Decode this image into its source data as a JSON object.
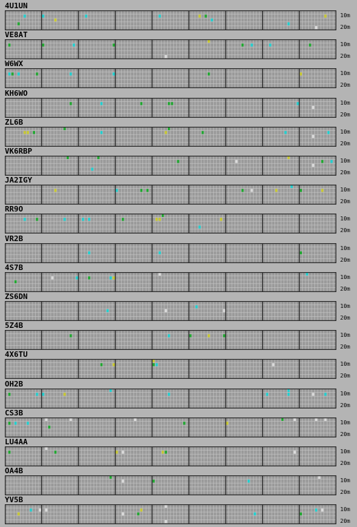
{
  "band_labels": {
    "top": "10m",
    "bottom": "20m"
  },
  "colors": {
    "background": "#b4b4b4",
    "grid_cell": "#9a9a9a",
    "grid_line": "#c6c6c6",
    "grid_major": "#2a2a2a",
    "spot_cyan": "#22d0d0",
    "spot_green": "#22a832",
    "spot_yellow": "#c8c832",
    "spot_white": "#dcdcdc"
  },
  "stations": [
    {
      "name": "4U1UN",
      "spots": [
        [
          4,
          3,
          "green"
        ],
        [
          6,
          1,
          "cyan"
        ],
        [
          12,
          1,
          "cyan"
        ],
        [
          16,
          2,
          "yellow"
        ],
        [
          26,
          1,
          "cyan"
        ],
        [
          50,
          1,
          "cyan"
        ],
        [
          63,
          1,
          "yellow"
        ],
        [
          65,
          1,
          "green"
        ],
        [
          67,
          2,
          "cyan"
        ],
        [
          92,
          3,
          "cyan"
        ],
        [
          101,
          4,
          "white"
        ],
        [
          104,
          1,
          "yellow"
        ]
      ]
    },
    {
      "name": "VE8AT",
      "spots": [
        [
          1,
          1,
          "green"
        ],
        [
          12,
          1,
          "green"
        ],
        [
          22,
          1,
          "cyan"
        ],
        [
          35,
          1,
          "green"
        ],
        [
          52,
          4,
          "white"
        ],
        [
          66,
          0,
          "yellow"
        ],
        [
          77,
          1,
          "green"
        ],
        [
          80,
          1,
          "cyan"
        ],
        [
          86,
          1,
          "cyan"
        ],
        [
          99,
          1,
          "green"
        ]
      ]
    },
    {
      "name": "W6WX",
      "spots": [
        [
          1,
          1,
          "cyan"
        ],
        [
          2,
          1,
          "green"
        ],
        [
          4,
          1,
          "cyan"
        ],
        [
          10,
          1,
          "green"
        ],
        [
          21,
          1,
          "cyan"
        ],
        [
          35,
          1,
          "cyan"
        ],
        [
          66,
          1,
          "green"
        ],
        [
          96,
          1,
          "yellow"
        ]
      ]
    },
    {
      "name": "KH6WO",
      "spots": [
        [
          21,
          1,
          "green"
        ],
        [
          31,
          1,
          "cyan"
        ],
        [
          44,
          1,
          "green"
        ],
        [
          53,
          1,
          "green"
        ],
        [
          54,
          1,
          "green"
        ],
        [
          95,
          1,
          "cyan"
        ],
        [
          100,
          2,
          "white"
        ]
      ]
    },
    {
      "name": "ZL6B",
      "spots": [
        [
          6,
          1,
          "yellow"
        ],
        [
          7,
          1,
          "yellow"
        ],
        [
          9,
          1,
          "green"
        ],
        [
          19,
          0,
          "green"
        ],
        [
          31,
          1,
          "cyan"
        ],
        [
          52,
          1,
          "yellow"
        ],
        [
          53,
          0,
          "green"
        ],
        [
          64,
          1,
          "green"
        ],
        [
          91,
          1,
          "cyan"
        ],
        [
          100,
          2,
          "white"
        ],
        [
          105,
          1,
          "cyan"
        ]
      ]
    },
    {
      "name": "VK6RBP",
      "spots": [
        [
          20,
          0,
          "green"
        ],
        [
          28,
          3,
          "cyan"
        ],
        [
          30,
          0,
          "green"
        ],
        [
          56,
          1,
          "green"
        ],
        [
          75,
          1,
          "white"
        ],
        [
          92,
          0,
          "yellow"
        ],
        [
          100,
          2,
          "white"
        ],
        [
          103,
          1,
          "green"
        ],
        [
          106,
          1,
          "cyan"
        ]
      ]
    },
    {
      "name": "JA2IGY",
      "spots": [
        [
          16,
          1,
          "yellow"
        ],
        [
          36,
          1,
          "cyan"
        ],
        [
          44,
          1,
          "green"
        ],
        [
          46,
          1,
          "green"
        ],
        [
          77,
          1,
          "green"
        ],
        [
          80,
          1,
          "white"
        ],
        [
          88,
          1,
          "yellow"
        ],
        [
          93,
          0,
          "cyan"
        ],
        [
          96,
          1,
          "green"
        ],
        [
          103,
          1,
          "yellow"
        ]
      ]
    },
    {
      "name": "RR9O",
      "spots": [
        [
          6,
          1,
          "cyan"
        ],
        [
          10,
          1,
          "green"
        ],
        [
          19,
          1,
          "cyan"
        ],
        [
          25,
          1,
          "cyan"
        ],
        [
          27,
          1,
          "cyan"
        ],
        [
          38,
          1,
          "green"
        ],
        [
          49,
          1,
          "yellow"
        ],
        [
          50,
          1,
          "yellow"
        ],
        [
          51,
          0,
          "green"
        ],
        [
          63,
          3,
          "cyan"
        ],
        [
          70,
          1,
          "yellow"
        ]
      ]
    },
    {
      "name": "VR2B",
      "spots": [
        [
          27,
          2,
          "cyan"
        ],
        [
          50,
          2,
          "cyan"
        ],
        [
          96,
          2,
          "green"
        ]
      ]
    },
    {
      "name": "4S7B",
      "spots": [
        [
          3,
          2,
          "green"
        ],
        [
          15,
          1,
          "white"
        ],
        [
          23,
          1,
          "cyan"
        ],
        [
          27,
          1,
          "green"
        ],
        [
          34,
          1,
          "cyan"
        ],
        [
          35,
          1,
          "yellow"
        ],
        [
          50,
          0,
          "white"
        ],
        [
          98,
          0,
          "cyan"
        ]
      ]
    },
    {
      "name": "ZS6DN",
      "spots": [
        [
          33,
          2,
          "cyan"
        ],
        [
          52,
          2,
          "white"
        ],
        [
          62,
          1,
          "cyan"
        ],
        [
          71,
          2,
          "white"
        ]
      ]
    },
    {
      "name": "5Z4B",
      "spots": [
        [
          21,
          1,
          "green"
        ],
        [
          53,
          1,
          "cyan"
        ],
        [
          60,
          1,
          "green"
        ],
        [
          66,
          1,
          "yellow"
        ],
        [
          71,
          1,
          "green"
        ]
      ]
    },
    {
      "name": "4X6TU",
      "spots": [
        [
          31,
          1,
          "green"
        ],
        [
          35,
          1,
          "yellow"
        ],
        [
          48,
          0,
          "yellow"
        ],
        [
          48,
          1,
          "green"
        ],
        [
          49,
          1,
          "cyan"
        ],
        [
          87,
          1,
          "white"
        ]
      ]
    },
    {
      "name": "OH2B",
      "spots": [
        [
          1,
          1,
          "green"
        ],
        [
          10,
          1,
          "cyan"
        ],
        [
          12,
          1,
          "cyan"
        ],
        [
          19,
          1,
          "yellow"
        ],
        [
          34,
          0,
          "cyan"
        ],
        [
          53,
          1,
          "cyan"
        ],
        [
          85,
          1,
          "cyan"
        ],
        [
          92,
          0,
          "cyan"
        ],
        [
          92,
          1,
          "cyan"
        ],
        [
          100,
          1,
          "white"
        ],
        [
          104,
          1,
          "cyan"
        ]
      ]
    },
    {
      "name": "CS3B",
      "spots": [
        [
          1,
          1,
          "green"
        ],
        [
          3,
          1,
          "cyan"
        ],
        [
          7,
          1,
          "cyan"
        ],
        [
          13,
          0,
          "white"
        ],
        [
          14,
          2,
          "green"
        ],
        [
          21,
          0,
          "white"
        ],
        [
          42,
          0,
          "white"
        ],
        [
          58,
          1,
          "green"
        ],
        [
          72,
          1,
          "yellow"
        ],
        [
          90,
          0,
          "green"
        ],
        [
          94,
          0,
          "white"
        ],
        [
          101,
          0,
          "white"
        ],
        [
          104,
          0,
          "white"
        ]
      ]
    },
    {
      "name": "LU4AA",
      "spots": [
        [
          1,
          1,
          "green"
        ],
        [
          13,
          0,
          "white"
        ],
        [
          16,
          1,
          "green"
        ],
        [
          36,
          1,
          "yellow"
        ],
        [
          38,
          1,
          "white"
        ],
        [
          51,
          1,
          "yellow"
        ],
        [
          52,
          1,
          "green"
        ],
        [
          94,
          1,
          "white"
        ]
      ]
    },
    {
      "name": "OA4B",
      "spots": [
        [
          34,
          0,
          "green"
        ],
        [
          38,
          1,
          "white"
        ],
        [
          48,
          1,
          "green"
        ],
        [
          79,
          1,
          "cyan"
        ],
        [
          102,
          0,
          "white"
        ]
      ]
    },
    {
      "name": "YV5B",
      "spots": [
        [
          4,
          2,
          "yellow"
        ],
        [
          8,
          1,
          "cyan"
        ],
        [
          11,
          1,
          "white"
        ],
        [
          13,
          1,
          "white"
        ],
        [
          38,
          2,
          "white"
        ],
        [
          43,
          2,
          "green"
        ],
        [
          44,
          1,
          "yellow"
        ],
        [
          52,
          0,
          "white"
        ],
        [
          52,
          4,
          "white"
        ],
        [
          81,
          2,
          "cyan"
        ],
        [
          96,
          2,
          "green"
        ],
        [
          101,
          1,
          "cyan"
        ],
        [
          103,
          1,
          "white"
        ]
      ]
    }
  ]
}
